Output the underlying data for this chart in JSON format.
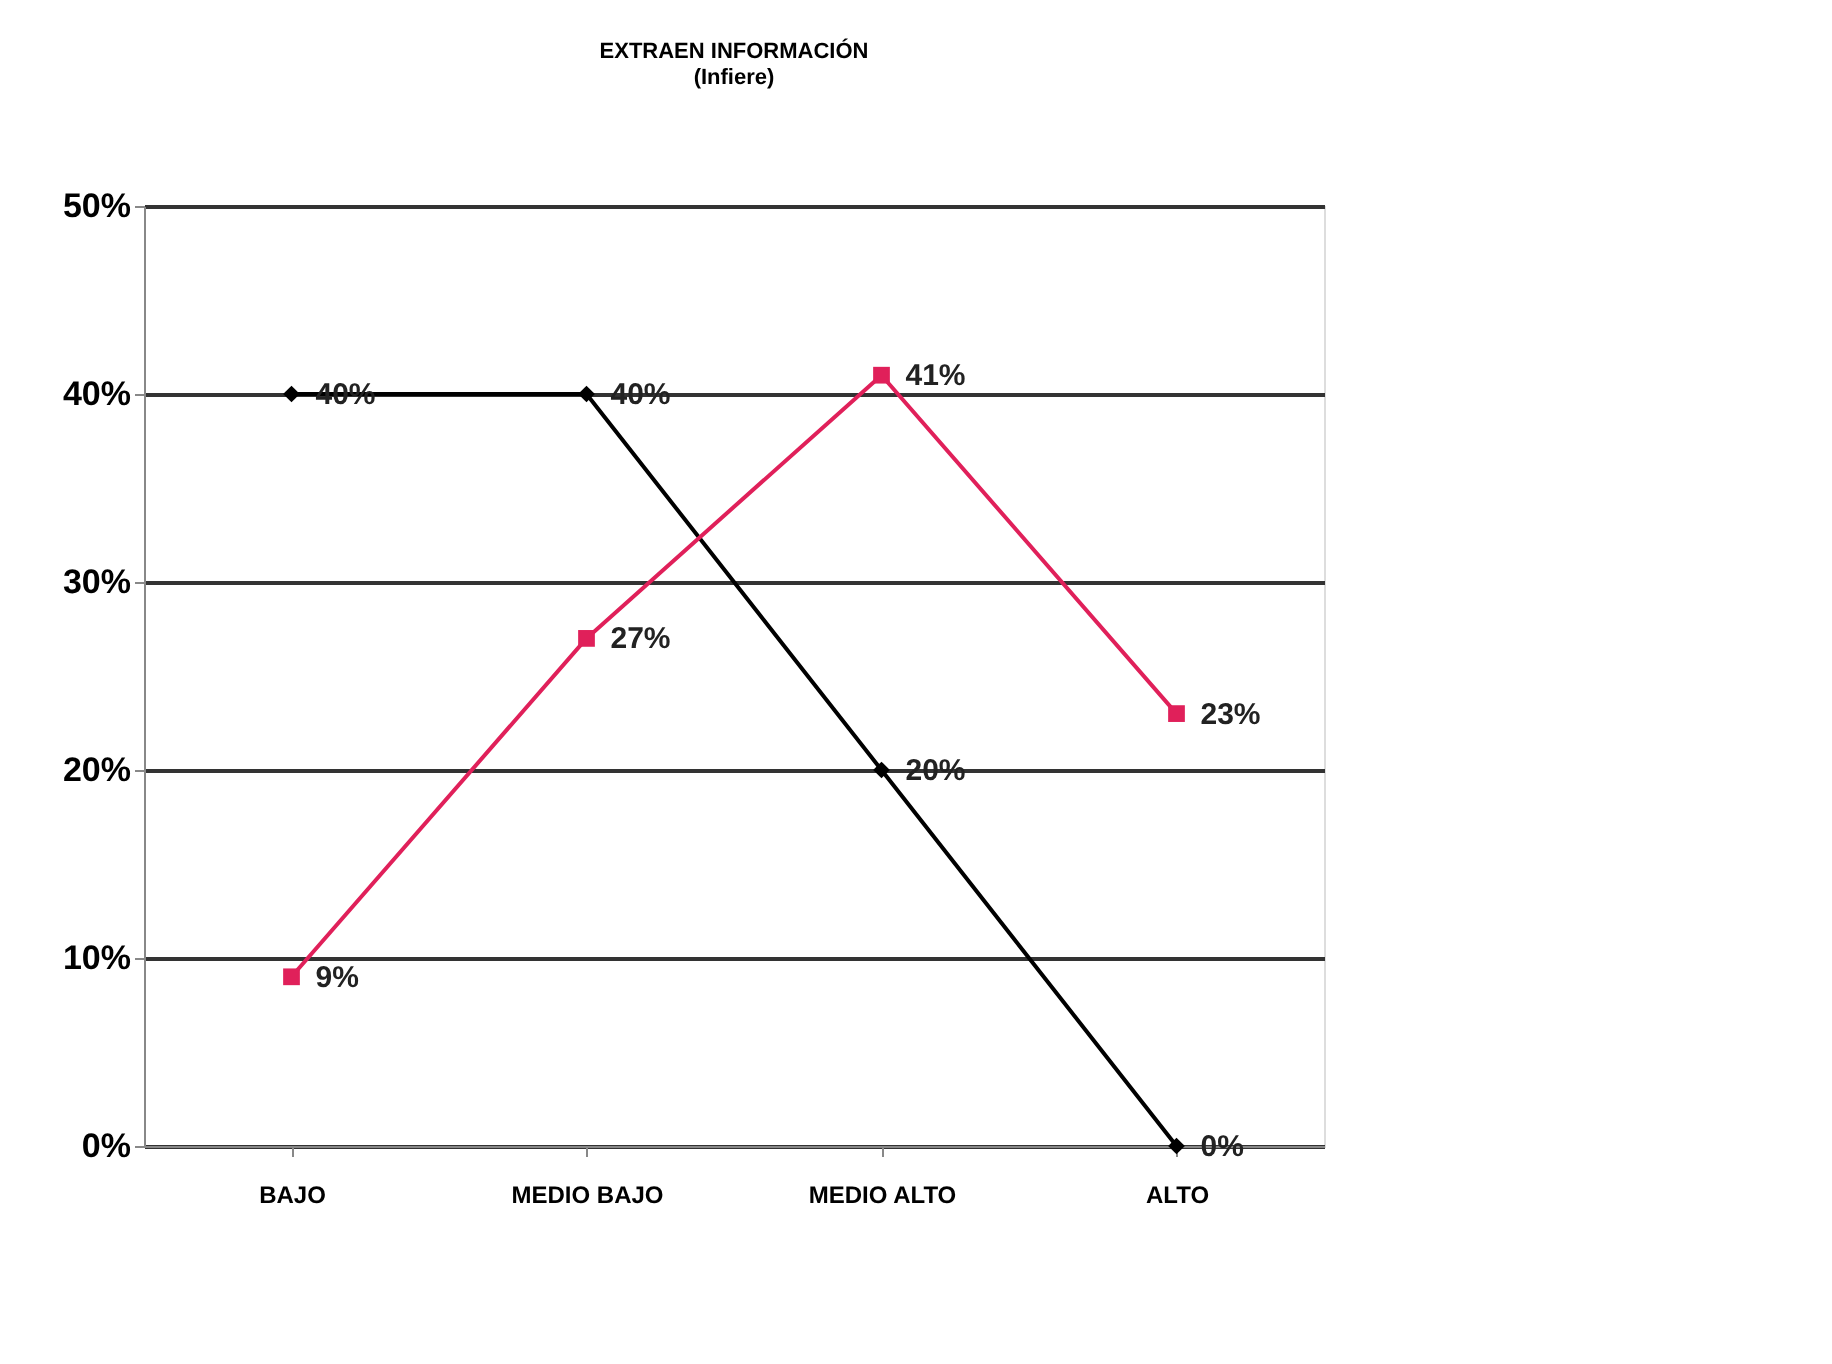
{
  "chart_data": {
    "type": "line",
    "title": [
      "EXTRAEN INFORMACIÓN",
      "(Infiere)"
    ],
    "categories": [
      "BAJO",
      "MEDIO BAJO",
      "MEDIO ALTO",
      "ALTO"
    ],
    "series": [
      {
        "color": "#000000",
        "marker": "diamond",
        "values": [
          40,
          40,
          20,
          0
        ],
        "value_labels": [
          "40%",
          "40%",
          "20%",
          "0%"
        ]
      },
      {
        "color": "#e0205a",
        "marker": "square",
        "values": [
          9,
          27,
          41,
          23
        ],
        "value_labels": [
          "9%",
          "27%",
          "41%",
          "23%"
        ]
      }
    ],
    "ylim": [
      0,
      50
    ],
    "yticks": [
      {
        "value": 0,
        "label": "0%"
      },
      {
        "value": 10,
        "label": "10%"
      },
      {
        "value": 20,
        "label": "20%"
      },
      {
        "value": 30,
        "label": "30%"
      },
      {
        "value": 40,
        "label": "40%"
      },
      {
        "value": 50,
        "label": "50%"
      }
    ],
    "grid": "y"
  }
}
